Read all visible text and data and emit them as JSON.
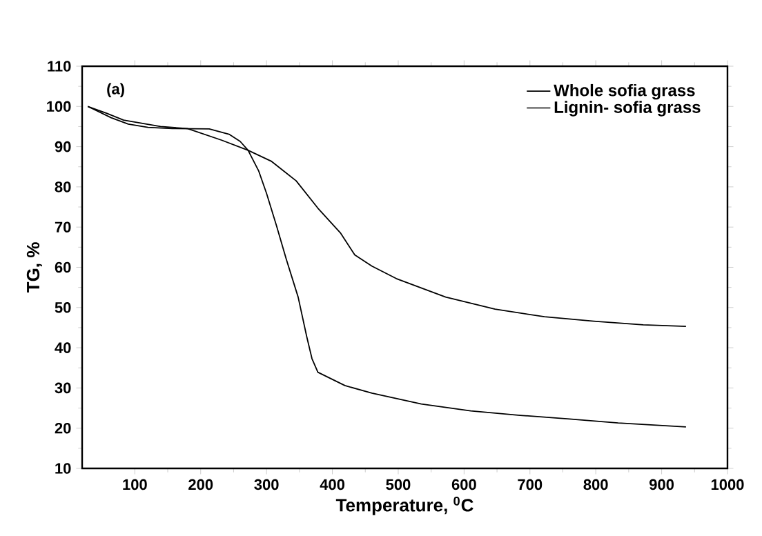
{
  "chart_data": {
    "type": "line",
    "xlabel": "Temperature, $^{0}$C",
    "ylabel": "TG, %",
    "annotations": [
      "(a)"
    ],
    "xlim": [
      20,
      1000
    ],
    "ylim": [
      10,
      110
    ],
    "xticks": [
      100,
      200,
      300,
      400,
      500,
      600,
      700,
      800,
      900,
      1000
    ],
    "yticks": [
      10,
      20,
      30,
      40,
      50,
      60,
      70,
      80,
      90,
      100,
      110
    ],
    "legend": "top right",
    "grid": false,
    "marker": "none",
    "line_style": "solid",
    "series": [
      {
        "name": "Whole sofia grass",
        "color": "#000000",
        "x": [
          28.6,
          64,
          90,
          120,
          157,
          213,
          243,
          260,
          272,
          288,
          300,
          315,
          330,
          348,
          361,
          369,
          378,
          419,
          460,
          535,
          610,
          685,
          760,
          834,
          937
        ],
        "values": [
          100,
          97.2,
          95.6,
          94.8,
          94.5,
          94.4,
          93.1,
          91.3,
          89.1,
          84.0,
          78.4,
          70.4,
          62,
          52.6,
          42.8,
          37.3,
          33.9,
          30.6,
          28.7,
          26.0,
          24.3,
          23.2,
          22.3,
          21.3,
          20.3
        ]
      },
      {
        "name": "Lignin- sofia grass",
        "color": "#000000",
        "x": [
          28.6,
          57,
          83,
          139,
          180,
          232,
          272,
          307,
          345,
          378,
          412,
          434,
          460,
          497,
          572,
          647,
          722,
          797,
          872,
          937
        ],
        "values": [
          100,
          98.3,
          96.6,
          95.0,
          94.5,
          91.6,
          89.1,
          86.4,
          81.5,
          74.7,
          68.6,
          63.1,
          60.3,
          57.2,
          52.6,
          49.6,
          47.7,
          46.6,
          45.7,
          45.3
        ]
      }
    ]
  }
}
